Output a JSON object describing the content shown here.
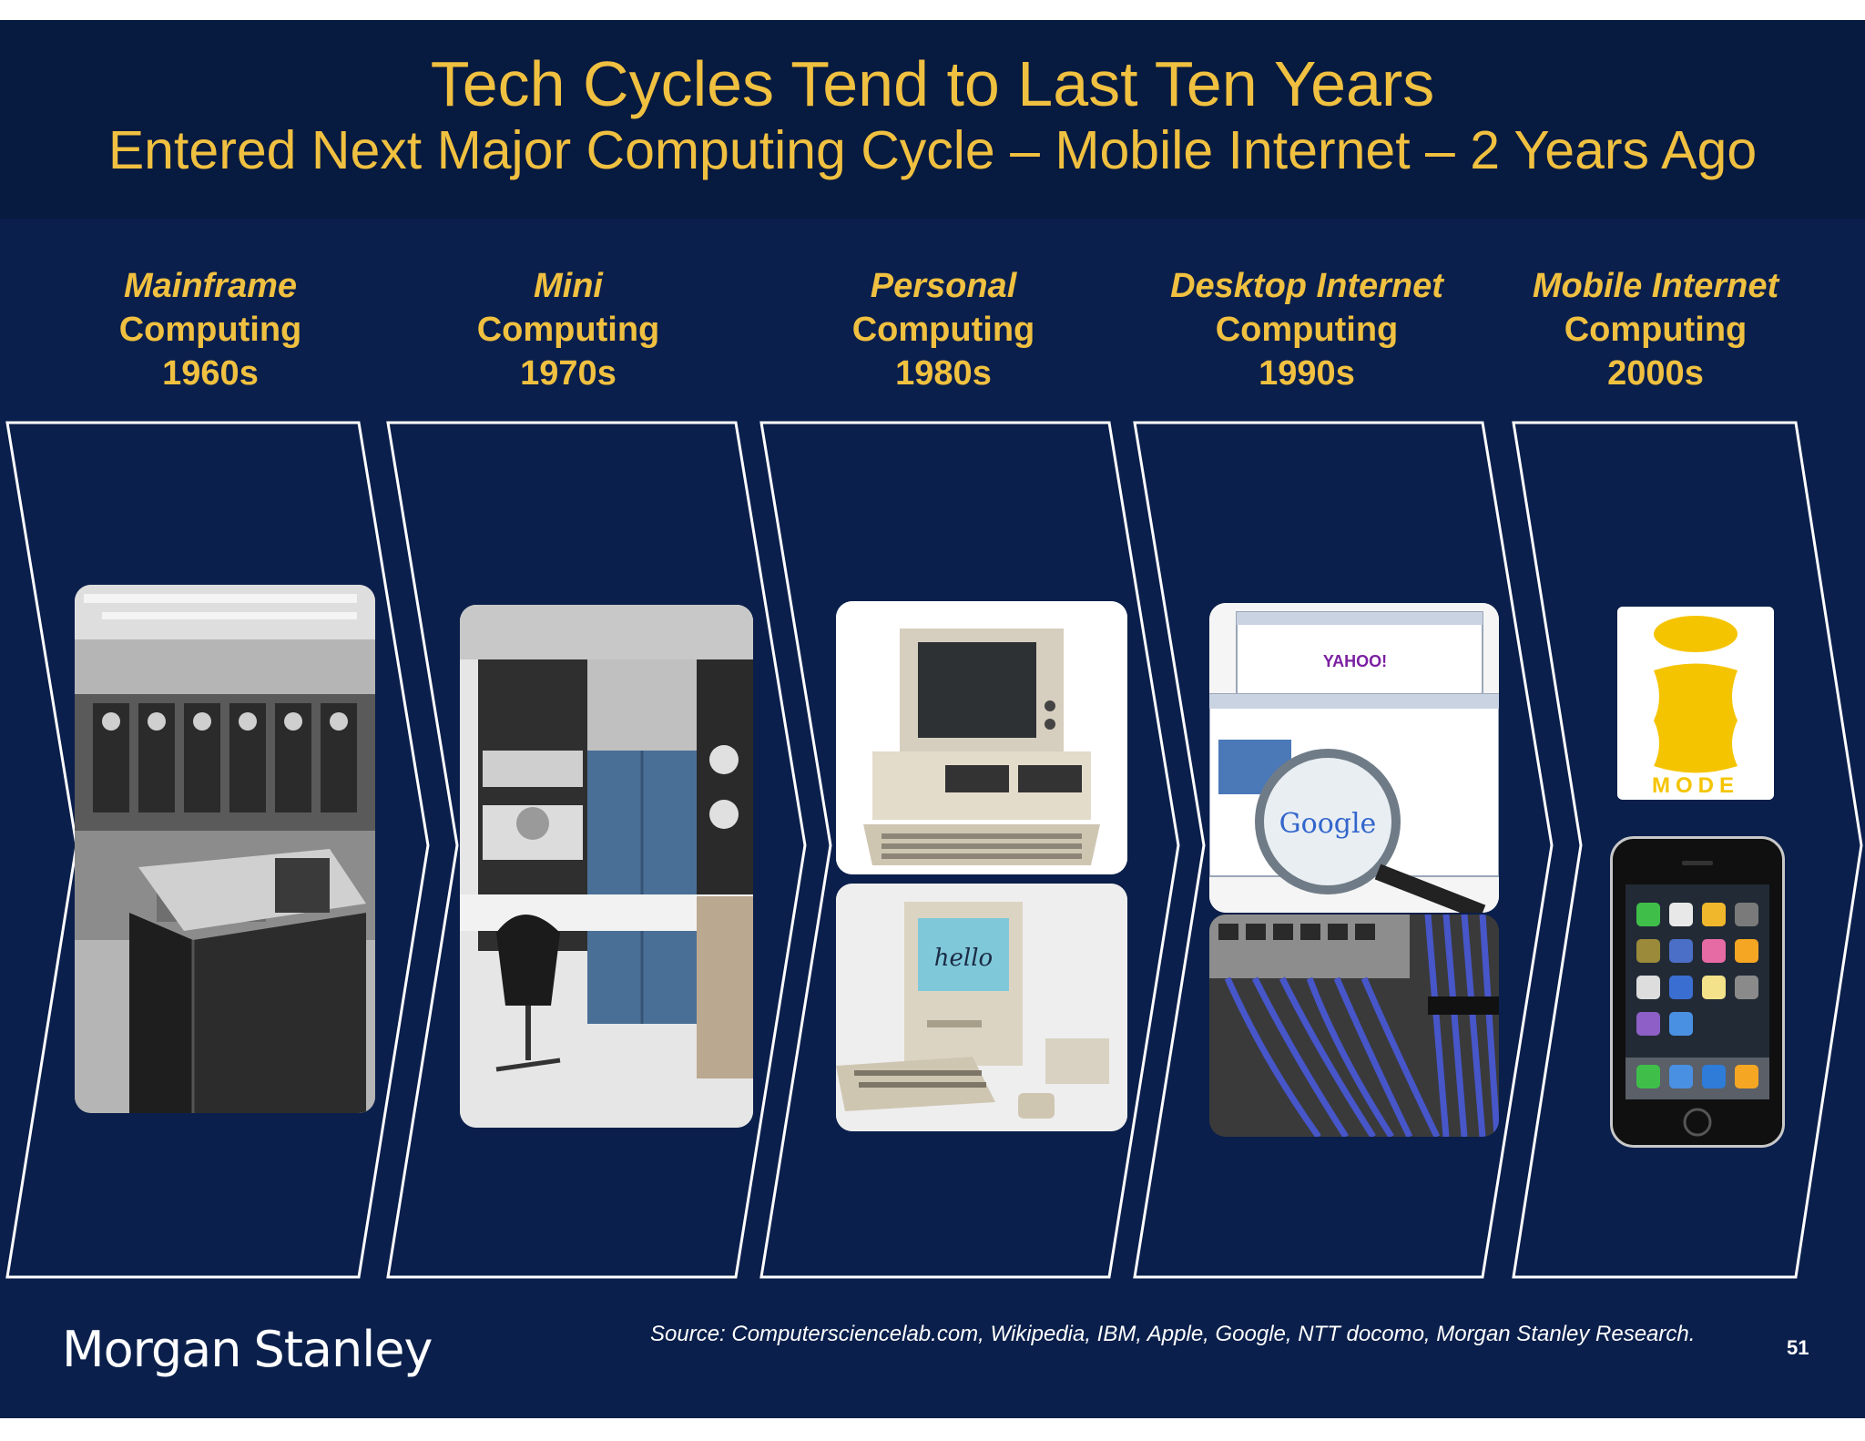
{
  "title": "Tech Cycles Tend to Last Ten Years",
  "subtitle": "Entered Next Major Computing Cycle – Mobile Internet – 2 Years Ago",
  "eras": [
    {
      "line1": "Mainframe",
      "line2": "Computing",
      "line3": "1960s"
    },
    {
      "line1": "Mini",
      "line2": "Computing",
      "line3": "1970s"
    },
    {
      "line1": "Personal",
      "line2": "Computing",
      "line3": "1980s"
    },
    {
      "line1": "Desktop Internet",
      "line2": "Computing",
      "line3": "1990s"
    },
    {
      "line1": "Mobile Internet",
      "line2": "Computing",
      "line3": "2000s"
    }
  ],
  "images": {
    "yahoo_label": "YAHOO!",
    "google_label": "Google",
    "hello_label": "hello",
    "imode_label": "MODE"
  },
  "footer": {
    "logo_word1": "Morgan",
    "logo_word2": "Stanley",
    "source": "Source: Computersciencelab.com, Wikipedia, IBM, Apple, Google, NTT docomo, Morgan Stanley Research.",
    "page_number": "51"
  },
  "colors": {
    "background": "#0a1f4b",
    "header": "#071a3f",
    "accent": "#f0c040"
  }
}
